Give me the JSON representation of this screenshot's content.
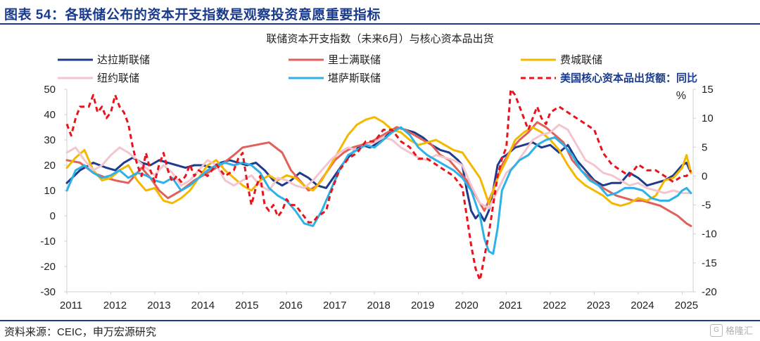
{
  "header": {
    "figure_title": "图表 54：各联储公布的资本开支指数是观察投资意愿重要指标"
  },
  "footer": {
    "source": "资料来源：CEIC，申万宏源研究",
    "watermark": "格隆汇"
  },
  "colors": {
    "dallas": "#1f3c8c",
    "richmond": "#e0605a",
    "philadelphia": "#f5b800",
    "newyork": "#f3c6cf",
    "kansas": "#2cb2e6",
    "orders": "#e8141d",
    "axis": "#d0d0d0"
  },
  "chart_data": {
    "type": "line",
    "title": "联储资本开支指数（未来6月）与核心资本品出货",
    "x_tick_labels": [
      "2011",
      "2012",
      "2013",
      "2014",
      "2015",
      "2016",
      "2017",
      "2018",
      "2019",
      "2020",
      "2021",
      "2022",
      "2023",
      "2024",
      "2025"
    ],
    "x_range": [
      2011.0,
      2025.25
    ],
    "left_axis": {
      "ylim": [
        -30,
        50
      ],
      "ticks": [
        -30,
        -20,
        -10,
        0,
        10,
        20,
        30,
        40,
        50
      ]
    },
    "right_axis": {
      "unit": "%",
      "ylim": [
        -20,
        15
      ],
      "ticks": [
        -20,
        -15,
        -10,
        -5,
        0,
        5,
        10,
        15
      ]
    },
    "legend": [
      "达拉斯联储",
      "里士满联储",
      "费城联储",
      "纽约联储",
      "堪萨斯联储",
      "美国核心资本品出货额：同比"
    ],
    "series": [
      {
        "name": "达拉斯联储",
        "axis": "left",
        "color_key": "dallas",
        "style": "solid",
        "width": 3,
        "x": [
          2011.0,
          2011.3,
          2011.6,
          2011.9,
          2012.1,
          2012.3,
          2012.5,
          2012.7,
          2012.9,
          2013.1,
          2013.3,
          2013.5,
          2013.7,
          2013.9,
          2014.1,
          2014.3,
          2014.5,
          2014.7,
          2014.9,
          2015.1,
          2015.3,
          2015.5,
          2015.7,
          2015.9,
          2016.1,
          2016.3,
          2016.5,
          2016.7,
          2016.9,
          2017.1,
          2017.3,
          2017.5,
          2017.7,
          2017.9,
          2018.1,
          2018.3,
          2018.5,
          2018.7,
          2018.9,
          2019.1,
          2019.3,
          2019.5,
          2019.7,
          2019.9,
          2020.0,
          2020.1,
          2020.2,
          2020.3,
          2020.4,
          2020.5,
          2020.6,
          2020.7,
          2020.8,
          2020.9,
          2021.0,
          2021.2,
          2021.4,
          2021.6,
          2021.8,
          2022.0,
          2022.2,
          2022.4,
          2022.6,
          2022.8,
          2023.0,
          2023.2,
          2023.4,
          2023.6,
          2023.8,
          2024.0,
          2024.2,
          2024.4,
          2024.6,
          2024.8,
          2025.0,
          2025.1,
          2025.2
        ],
        "values": [
          13,
          18,
          21,
          19,
          18,
          21,
          23,
          21,
          20,
          22,
          21,
          20,
          19,
          20,
          20,
          19,
          21,
          22,
          21,
          20,
          21,
          18,
          14,
          12,
          14,
          17,
          15,
          12,
          11,
          16,
          21,
          25,
          28,
          27,
          29,
          32,
          35,
          34,
          33,
          31,
          28,
          26,
          25,
          22,
          20,
          10,
          2,
          -1,
          1,
          -2,
          2,
          10,
          20,
          23,
          24,
          27,
          28,
          29,
          27,
          28,
          25,
          28,
          22,
          18,
          14,
          12,
          13,
          13,
          17,
          15,
          12,
          13,
          14,
          16,
          20,
          21,
          17
        ]
      },
      {
        "name": "里士满联储",
        "axis": "left",
        "color_key": "richmond",
        "style": "solid",
        "width": 3,
        "x": [
          2011.0,
          2011.3,
          2011.6,
          2011.9,
          2012.1,
          2012.4,
          2012.7,
          2012.9,
          2013.1,
          2013.3,
          2013.6,
          2013.9,
          2014.2,
          2014.5,
          2014.8,
          2015.0,
          2015.3,
          2015.6,
          2015.9,
          2016.1,
          2016.3,
          2016.5,
          2016.7,
          2016.9,
          2017.1,
          2017.3,
          2017.5,
          2017.7,
          2017.9,
          2018.1,
          2018.3,
          2018.5,
          2018.7,
          2018.9,
          2019.1,
          2019.3,
          2019.5,
          2019.7,
          2019.9,
          2020.1,
          2020.3,
          2020.5,
          2020.7,
          2020.9,
          2021.1,
          2021.3,
          2021.5,
          2021.7,
          2021.9,
          2022.1,
          2022.3,
          2022.5,
          2022.7,
          2022.9,
          2023.1,
          2023.3,
          2023.5,
          2023.7,
          2023.9,
          2024.1,
          2024.3,
          2024.5,
          2024.7,
          2024.9,
          2025.1,
          2025.2
        ],
        "values": [
          22,
          21,
          17,
          15,
          14,
          13,
          19,
          15,
          10,
          7,
          10,
          14,
          17,
          20,
          24,
          27,
          28,
          29,
          25,
          18,
          14,
          10,
          12,
          17,
          22,
          25,
          27,
          28,
          29,
          31,
          33,
          35,
          34,
          32,
          30,
          28,
          24,
          22,
          18,
          14,
          8,
          2,
          10,
          20,
          26,
          30,
          33,
          37,
          35,
          32,
          29,
          22,
          18,
          15,
          12,
          10,
          8,
          7,
          6,
          6,
          5,
          4,
          2,
          0,
          -3,
          -4
        ]
      },
      {
        "name": "费城联储",
        "axis": "left",
        "color_key": "philadelphia",
        "style": "solid",
        "width": 3,
        "x": [
          2011.0,
          2011.2,
          2011.4,
          2011.6,
          2011.8,
          2012.0,
          2012.2,
          2012.4,
          2012.6,
          2012.8,
          2013.0,
          2013.2,
          2013.4,
          2013.6,
          2013.8,
          2014.0,
          2014.2,
          2014.4,
          2014.6,
          2014.8,
          2015.0,
          2015.2,
          2015.4,
          2015.6,
          2015.8,
          2016.0,
          2016.2,
          2016.4,
          2016.6,
          2016.8,
          2017.0,
          2017.2,
          2017.4,
          2017.6,
          2017.8,
          2018.0,
          2018.2,
          2018.4,
          2018.6,
          2018.8,
          2019.0,
          2019.2,
          2019.4,
          2019.6,
          2019.8,
          2020.0,
          2020.2,
          2020.4,
          2020.6,
          2020.8,
          2021.0,
          2021.2,
          2021.4,
          2021.6,
          2021.8,
          2022.0,
          2022.2,
          2022.4,
          2022.6,
          2022.8,
          2023.0,
          2023.2,
          2023.4,
          2023.6,
          2023.8,
          2024.0,
          2024.2,
          2024.4,
          2024.6,
          2024.8,
          2025.0,
          2025.1,
          2025.2
        ],
        "values": [
          19,
          23,
          26,
          18,
          14,
          15,
          18,
          20,
          14,
          10,
          11,
          6,
          5,
          7,
          10,
          15,
          20,
          22,
          18,
          15,
          12,
          10,
          14,
          16,
          14,
          16,
          15,
          12,
          10,
          14,
          20,
          26,
          32,
          36,
          38,
          39,
          37,
          34,
          33,
          30,
          28,
          29,
          30,
          28,
          26,
          25,
          20,
          15,
          5,
          15,
          22,
          30,
          33,
          35,
          33,
          30,
          26,
          20,
          15,
          12,
          10,
          8,
          5,
          4,
          5,
          7,
          6,
          8,
          14,
          15,
          19,
          24,
          17
        ]
      },
      {
        "name": "纽约联储",
        "axis": "left",
        "color_key": "newyork",
        "style": "solid",
        "width": 3,
        "x": [
          2011.0,
          2011.2,
          2011.4,
          2011.6,
          2011.8,
          2012.0,
          2012.2,
          2012.4,
          2012.6,
          2012.8,
          2013.0,
          2013.2,
          2013.4,
          2013.6,
          2013.8,
          2014.0,
          2014.2,
          2014.4,
          2014.6,
          2014.8,
          2015.0,
          2015.2,
          2015.4,
          2015.6,
          2015.8,
          2016.0,
          2016.2,
          2016.4,
          2016.6,
          2016.8,
          2017.0,
          2017.2,
          2017.4,
          2017.6,
          2017.8,
          2018.0,
          2018.2,
          2018.4,
          2018.6,
          2018.8,
          2019.0,
          2019.2,
          2019.4,
          2019.6,
          2019.8,
          2020.0,
          2020.2,
          2020.4,
          2020.6,
          2020.8,
          2021.0,
          2021.2,
          2021.4,
          2021.6,
          2021.8,
          2022.0,
          2022.2,
          2022.4,
          2022.6,
          2022.8,
          2023.0,
          2023.2,
          2023.4,
          2023.6,
          2023.8,
          2024.0,
          2024.2,
          2024.4,
          2024.6,
          2024.8,
          2025.0,
          2025.2
        ],
        "values": [
          25,
          27,
          22,
          18,
          20,
          24,
          27,
          25,
          22,
          19,
          16,
          20,
          17,
          12,
          14,
          18,
          22,
          20,
          14,
          12,
          14,
          16,
          12,
          10,
          15,
          14,
          12,
          11,
          14,
          18,
          22,
          25,
          27,
          26,
          28,
          29,
          31,
          30,
          27,
          25,
          23,
          22,
          24,
          23,
          22,
          20,
          12,
          5,
          3,
          10,
          17,
          20,
          25,
          30,
          32,
          33,
          36,
          34,
          28,
          22,
          20,
          17,
          16,
          14,
          12,
          13,
          11,
          10,
          9,
          10,
          9,
          9
        ]
      },
      {
        "name": "堪萨斯联储",
        "axis": "left",
        "color_key": "kansas",
        "style": "solid",
        "width": 3,
        "x": [
          2011.0,
          2011.2,
          2011.4,
          2011.6,
          2011.8,
          2012.0,
          2012.2,
          2012.4,
          2012.6,
          2012.8,
          2013.0,
          2013.2,
          2013.4,
          2013.6,
          2013.8,
          2014.0,
          2014.2,
          2014.4,
          2014.6,
          2014.8,
          2015.0,
          2015.2,
          2015.4,
          2015.6,
          2015.8,
          2016.0,
          2016.2,
          2016.4,
          2016.6,
          2016.8,
          2017.0,
          2017.2,
          2017.4,
          2017.6,
          2017.8,
          2018.0,
          2018.2,
          2018.4,
          2018.6,
          2018.8,
          2019.0,
          2019.2,
          2019.4,
          2019.6,
          2019.8,
          2020.0,
          2020.2,
          2020.4,
          2020.5,
          2020.6,
          2020.7,
          2020.8,
          2020.9,
          2021.1,
          2021.3,
          2021.5,
          2021.7,
          2021.9,
          2022.1,
          2022.3,
          2022.5,
          2022.7,
          2022.9,
          2023.1,
          2023.3,
          2023.5,
          2023.7,
          2023.9,
          2024.1,
          2024.3,
          2024.5,
          2024.7,
          2024.9,
          2025.0,
          2025.1,
          2025.2
        ],
        "values": [
          10,
          18,
          20,
          17,
          15,
          16,
          18,
          15,
          17,
          16,
          14,
          13,
          15,
          10,
          12,
          15,
          18,
          20,
          21,
          20,
          21,
          20,
          17,
          11,
          8,
          6,
          2,
          -3,
          -4,
          2,
          10,
          18,
          24,
          26,
          28,
          27,
          30,
          33,
          35,
          32,
          27,
          24,
          22,
          20,
          18,
          15,
          10,
          0,
          -9,
          -14,
          -15,
          -5,
          10,
          18,
          22,
          24,
          28,
          30,
          31,
          28,
          24,
          18,
          14,
          12,
          8,
          9,
          11,
          11,
          10,
          7,
          6,
          6,
          8,
          10,
          11,
          9
        ]
      },
      {
        "name": "美国核心资本品出货额：同比",
        "axis": "right",
        "color_key": "orders",
        "style": "dashed",
        "width": 3,
        "x": [
          2011.0,
          2011.1,
          2011.2,
          2011.3,
          2011.5,
          2011.6,
          2011.7,
          2011.8,
          2011.9,
          2012.0,
          2012.1,
          2012.2,
          2012.3,
          2012.4,
          2012.5,
          2012.6,
          2012.7,
          2012.8,
          2012.9,
          2013.0,
          2013.1,
          2013.2,
          2013.3,
          2013.4,
          2013.5,
          2013.6,
          2013.7,
          2013.8,
          2013.9,
          2014.0,
          2014.2,
          2014.4,
          2014.6,
          2014.8,
          2014.9,
          2015.0,
          2015.1,
          2015.2,
          2015.3,
          2015.4,
          2015.5,
          2015.6,
          2015.7,
          2015.8,
          2015.9,
          2016.0,
          2016.1,
          2016.2,
          2016.3,
          2016.4,
          2016.5,
          2016.6,
          2016.7,
          2016.9,
          2017.0,
          2017.2,
          2017.4,
          2017.6,
          2017.8,
          2018.0,
          2018.2,
          2018.4,
          2018.6,
          2018.8,
          2019.0,
          2019.2,
          2019.4,
          2019.6,
          2019.8,
          2020.0,
          2020.1,
          2020.2,
          2020.3,
          2020.4,
          2020.5,
          2020.6,
          2020.7,
          2020.8,
          2020.9,
          2021.0,
          2021.1,
          2021.2,
          2021.3,
          2021.4,
          2021.5,
          2021.6,
          2021.7,
          2021.8,
          2021.9,
          2022.0,
          2022.2,
          2022.4,
          2022.6,
          2022.8,
          2023.0,
          2023.2,
          2023.4,
          2023.6,
          2023.8,
          2024.0,
          2024.2,
          2024.4,
          2024.6,
          2024.8,
          2025.0,
          2025.1,
          2025.2
        ],
        "values": [
          9,
          7,
          10,
          12,
          12,
          14,
          11,
          12,
          10,
          11,
          14,
          12,
          11,
          9,
          5,
          2,
          0,
          4,
          1,
          -1,
          2,
          4,
          1,
          -1,
          0,
          -1,
          0,
          2,
          0,
          1,
          0,
          2,
          0,
          1,
          3,
          4,
          -1,
          -5,
          -2,
          0,
          -5,
          -6,
          -5,
          -7,
          -6,
          -4,
          -5,
          -5,
          -6,
          -7,
          -8,
          -8,
          -7,
          -6,
          -3,
          1,
          3,
          4,
          6,
          6,
          8,
          8,
          6,
          5,
          3,
          3,
          2,
          1,
          0,
          -2,
          -7,
          -12,
          -16,
          -18,
          -14,
          -10,
          -5,
          0,
          3,
          5,
          15,
          14,
          12,
          10,
          8,
          10,
          12,
          10,
          9,
          11,
          12,
          11,
          10,
          9,
          8,
          4,
          2,
          1,
          0,
          2,
          1,
          1,
          0,
          -1,
          0,
          0,
          1
        ]
      }
    ]
  }
}
